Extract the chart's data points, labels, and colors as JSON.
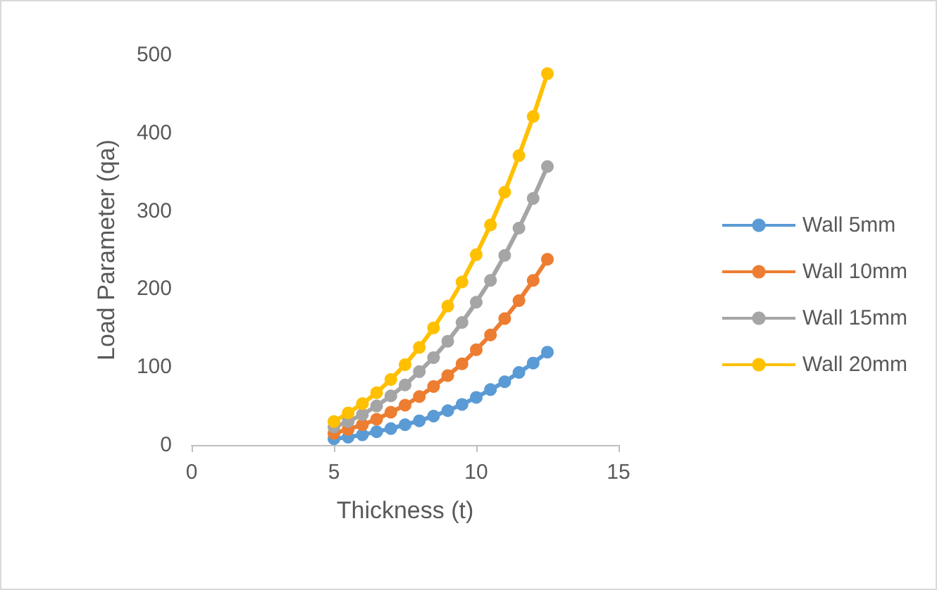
{
  "chart_data": {
    "type": "line",
    "xlabel": "Thickness (t)",
    "ylabel": "Load Parameter (qa)",
    "x": [
      5,
      5.5,
      6,
      6.5,
      7,
      7.5,
      8,
      8.5,
      9,
      9.5,
      10,
      10.5,
      11,
      11.5,
      12,
      12.5
    ],
    "series": [
      {
        "name": "Wall 5mm",
        "color": "#5b9bd5",
        "values": [
          8,
          10,
          13,
          17,
          21,
          26,
          31,
          37,
          44,
          52,
          61,
          71,
          81,
          93,
          105,
          119
        ]
      },
      {
        "name": "Wall 10mm",
        "color": "#ed7d31",
        "values": [
          15,
          20,
          26,
          33,
          42,
          51,
          62,
          75,
          89,
          104,
          122,
          141,
          162,
          185,
          211,
          238
        ]
      },
      {
        "name": "Wall 15mm",
        "color": "#a5a5a5",
        "values": [
          23,
          30,
          39,
          50,
          63,
          77,
          94,
          112,
          133,
          157,
          183,
          211,
          243,
          278,
          316,
          357
        ]
      },
      {
        "name": "Wall 20mm",
        "color": "#ffc000",
        "values": [
          30,
          41,
          53,
          67,
          84,
          103,
          125,
          150,
          178,
          209,
          244,
          282,
          324,
          371,
          421,
          476
        ]
      }
    ],
    "xlim": [
      0,
      15
    ],
    "xticks": [
      0,
      5,
      10,
      15
    ],
    "ylim": [
      0,
      500
    ],
    "yticks": [
      0,
      100,
      200,
      300,
      400,
      500
    ],
    "grid": false,
    "legend": "right",
    "marker": "circle",
    "line_style": "solid"
  }
}
